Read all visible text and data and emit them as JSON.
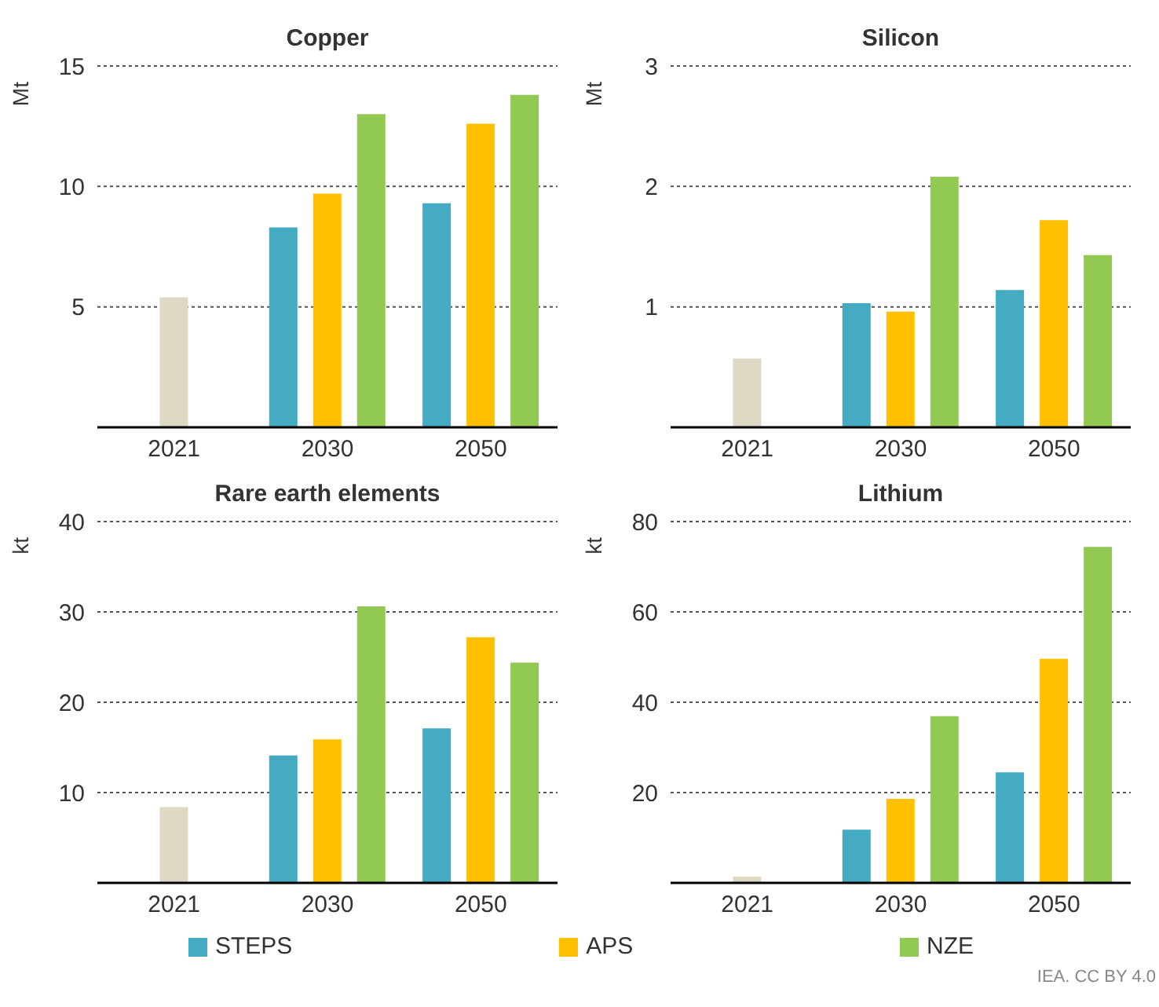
{
  "chart_data": [
    {
      "type": "bar",
      "title": "Copper",
      "ylabel": "Mt",
      "categories": [
        "2021",
        "2030",
        "2050"
      ],
      "ylim": [
        0,
        15
      ],
      "yticks": [
        5,
        10,
        15
      ],
      "grid": "y",
      "series": [
        {
          "color": "#ddd9c4",
          "values": [
            5.4,
            null,
            null
          ]
        },
        {
          "color": "#44abc2",
          "values": [
            null,
            8.3,
            9.3
          ]
        },
        {
          "color": "#ffc000",
          "values": [
            null,
            9.7,
            12.6
          ]
        },
        {
          "color": "#92c953",
          "values": [
            null,
            13.0,
            13.8
          ]
        }
      ]
    },
    {
      "type": "bar",
      "title": "Silicon",
      "ylabel": "Mt",
      "categories": [
        "2021",
        "2030",
        "2050"
      ],
      "ylim": [
        0,
        3
      ],
      "yticks": [
        1,
        2,
        3
      ],
      "grid": "y",
      "series": [
        {
          "color": "#ddd9c4",
          "values": [
            0.57,
            null,
            null
          ]
        },
        {
          "color": "#44abc2",
          "values": [
            null,
            1.03,
            1.14
          ]
        },
        {
          "color": "#ffc000",
          "values": [
            null,
            0.96,
            1.72
          ]
        },
        {
          "color": "#92c953",
          "values": [
            null,
            2.08,
            1.43
          ]
        }
      ]
    },
    {
      "type": "bar",
      "title": "Rare earth elements",
      "ylabel": "kt",
      "categories": [
        "2021",
        "2030",
        "2050"
      ],
      "ylim": [
        0,
        40
      ],
      "yticks": [
        10,
        20,
        30,
        40
      ],
      "grid": "y",
      "legend": "bottom",
      "series": [
        {
          "color": "#ddd9c4",
          "values": [
            8.4,
            null,
            null
          ]
        },
        {
          "name": "STEPS",
          "color": "#44abc2",
          "values": [
            null,
            14.1,
            17.1
          ]
        },
        {
          "name": "APS",
          "color": "#ffc000",
          "values": [
            null,
            15.9,
            27.2
          ]
        },
        {
          "name": "NZE",
          "color": "#92c953",
          "values": [
            null,
            30.6,
            24.4
          ]
        }
      ]
    },
    {
      "type": "bar",
      "title": "Lithium",
      "ylabel": "kt",
      "categories": [
        "2021",
        "2030",
        "2050"
      ],
      "ylim": [
        0,
        80
      ],
      "yticks": [
        20,
        40,
        60,
        80
      ],
      "grid": "y",
      "annotations": [
        "IEA. CC BY 4.0"
      ],
      "series": [
        {
          "color": "#ddd9c4",
          "values": [
            1.4,
            null,
            null
          ]
        },
        {
          "color": "#44abc2",
          "values": [
            null,
            11.8,
            24.5
          ]
        },
        {
          "color": "#ffc000",
          "values": [
            null,
            18.6,
            49.6
          ]
        },
        {
          "color": "#92c953",
          "values": [
            null,
            36.9,
            74.4
          ]
        }
      ]
    }
  ]
}
